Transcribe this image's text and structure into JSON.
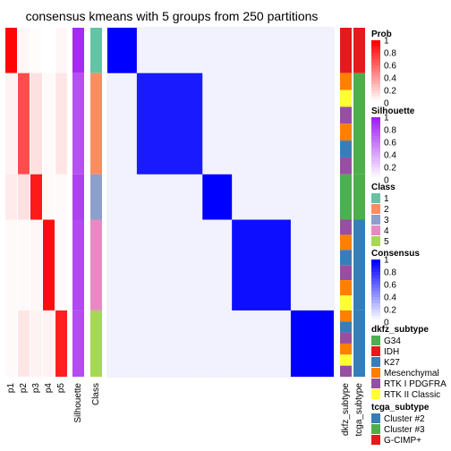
{
  "chart_data": {
    "type": "heatmap",
    "title": "consensus kmeans with 5 groups from 250 partitions",
    "prob_columns": [
      "p1",
      "p2",
      "p3",
      "p4",
      "p5"
    ],
    "annotation_columns": [
      "Silhouette",
      "Class"
    ],
    "right_columns": [
      "dkfz_subtype",
      "tcga_subtype"
    ],
    "groups": [
      {
        "class": 1,
        "fraction": 0.13,
        "prob": [
          0.98,
          0.03,
          0.01,
          0.0,
          0.03
        ],
        "silhouette": 0.95,
        "dkfz": "IDH",
        "tcga": "G-CIMP+"
      },
      {
        "class": 2,
        "fraction": 0.29,
        "prob": [
          0.05,
          0.7,
          0.12,
          0.02,
          0.1
        ],
        "silhouette": 0.78,
        "dkfz": "mixed",
        "tcga": "Cluster #3"
      },
      {
        "class": 3,
        "fraction": 0.13,
        "prob": [
          0.08,
          0.12,
          0.9,
          0.02,
          0.02
        ],
        "silhouette": 0.85,
        "dkfz": "G34",
        "tcga": "Cluster #3"
      },
      {
        "class": 4,
        "fraction": 0.26,
        "prob": [
          0.02,
          0.02,
          0.03,
          0.95,
          0.02
        ],
        "silhouette": 0.82,
        "dkfz": "mixed",
        "tcga": "Cluster #2"
      },
      {
        "class": 5,
        "fraction": 0.19,
        "prob": [
          0.02,
          0.1,
          0.05,
          0.05,
          0.88
        ],
        "silhouette": 0.8,
        "dkfz": "mixed",
        "tcga": "Cluster #2"
      }
    ],
    "consensus_blocks": [
      1.0,
      0.9,
      1.0,
      0.95,
      1.0
    ],
    "legends": {
      "prob": {
        "title": "Prob",
        "ticks": [
          "1",
          "0.8",
          "0.6",
          "0.4",
          "0.2",
          "0"
        ]
      },
      "silhouette": {
        "title": "Silhouette",
        "ticks": [
          "1",
          "0.8",
          "0.6",
          "0.4",
          "0.2",
          "0"
        ]
      },
      "class": {
        "title": "Class",
        "items": [
          {
            "label": "1",
            "color": "#66C2A5"
          },
          {
            "label": "2",
            "color": "#FC8D62"
          },
          {
            "label": "3",
            "color": "#8DA0CB"
          },
          {
            "label": "4",
            "color": "#E78AC3"
          },
          {
            "label": "5",
            "color": "#A6D854"
          }
        ]
      },
      "consensus": {
        "title": "Consensus",
        "ticks": [
          "1",
          "0.8",
          "0.6",
          "0.4",
          "0.2",
          "0"
        ]
      },
      "dkfz_subtype": {
        "title": "dkfz_subtype",
        "items": [
          {
            "label": "G34",
            "color": "#4CAF50"
          },
          {
            "label": "IDH",
            "color": "#E41A1C"
          },
          {
            "label": "K27",
            "color": "#377EB8"
          },
          {
            "label": "Mesenchymal",
            "color": "#FF7F00"
          },
          {
            "label": "RTK I PDGFRA",
            "color": "#984EA3"
          },
          {
            "label": "RTK II Classic",
            "color": "#FFFF33"
          }
        ]
      },
      "tcga_subtype": {
        "title": "tcga_subtype",
        "items": [
          {
            "label": "Cluster #2",
            "color": "#377EB8"
          },
          {
            "label": "Cluster #3",
            "color": "#4DAF4A"
          },
          {
            "label": "G-CIMP+",
            "color": "#E41A1C"
          }
        ]
      }
    },
    "colors": {
      "prob_high": "#FF0000",
      "sil_high": "#A020F0",
      "consensus_high": "#0000FF",
      "low": "#FFFFFF"
    }
  }
}
